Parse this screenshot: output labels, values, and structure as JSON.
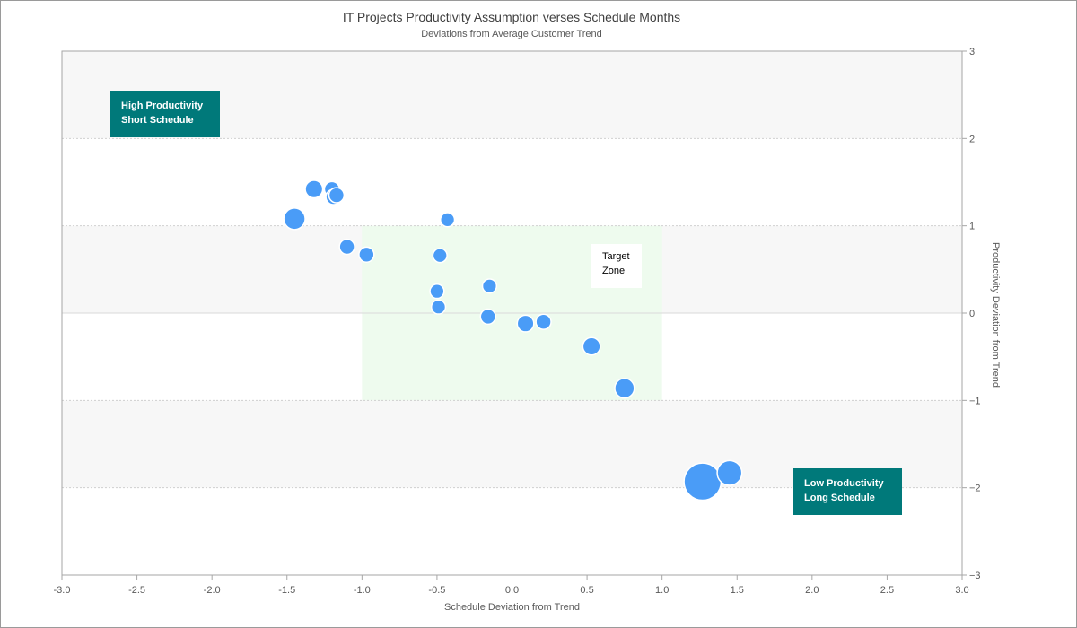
{
  "chart_data": {
    "type": "scatter",
    "variant": "bubble",
    "title": "IT Projects Productivity Assumption verses Schedule Months",
    "subtitle": "Deviations from Average Customer Trend",
    "xlabel": "Schedule Deviation from Trend",
    "ylabel": "Productivity Deviation from Trend",
    "xlim": [
      -3.0,
      3.0
    ],
    "ylim": [
      -3,
      3
    ],
    "x_ticks": [
      "-3.0",
      "-2.5",
      "-2.0",
      "-1.5",
      "-1.0",
      "-0.5",
      "0.0",
      "0.5",
      "1.0",
      "1.5",
      "2.0",
      "2.5",
      "3.0"
    ],
    "y_ticks": [
      "3",
      "2",
      "1",
      "0",
      "−1",
      "−2",
      "−3"
    ],
    "y_axis_position": "right",
    "grid": "horizontal dotted",
    "bubble_color": "#4a9cf7",
    "points": [
      {
        "x": -1.45,
        "y": 1.08,
        "size": 3
      },
      {
        "x": -1.32,
        "y": 1.42,
        "size": 2
      },
      {
        "x": -1.2,
        "y": 1.42,
        "size": 1.5
      },
      {
        "x": -1.19,
        "y": 1.33,
        "size": 1.5
      },
      {
        "x": -1.17,
        "y": 1.35,
        "size": 1.5
      },
      {
        "x": -1.1,
        "y": 0.76,
        "size": 1.5
      },
      {
        "x": -0.97,
        "y": 0.67,
        "size": 1.5
      },
      {
        "x": -0.43,
        "y": 1.07,
        "size": 1.3
      },
      {
        "x": -0.48,
        "y": 0.66,
        "size": 1.3
      },
      {
        "x": -0.5,
        "y": 0.25,
        "size": 1.3
      },
      {
        "x": -0.49,
        "y": 0.07,
        "size": 1.3
      },
      {
        "x": -0.15,
        "y": 0.31,
        "size": 1.3
      },
      {
        "x": -0.16,
        "y": -0.04,
        "size": 1.5
      },
      {
        "x": 0.09,
        "y": -0.12,
        "size": 1.8
      },
      {
        "x": 0.21,
        "y": -0.1,
        "size": 1.5
      },
      {
        "x": 0.53,
        "y": -0.38,
        "size": 2
      },
      {
        "x": 0.75,
        "y": -0.86,
        "size": 2.5
      },
      {
        "x": 1.45,
        "y": -1.83,
        "size": 4
      },
      {
        "x": 1.27,
        "y": -1.93,
        "size": 9
      }
    ],
    "target_zone": {
      "x": [
        -1.0,
        1.0
      ],
      "y": [
        -1,
        1
      ],
      "label": "Target Zone"
    },
    "annotations": {
      "top_left": [
        "High Productivity",
        "Short Schedule"
      ],
      "bottom_right": [
        "Low Productivity",
        "Long Schedule"
      ],
      "target": [
        "Target",
        "Zone"
      ]
    },
    "colors": {
      "band": "#f7f7f7",
      "target_zone": "#eefbee",
      "callout": "#00797a"
    }
  }
}
